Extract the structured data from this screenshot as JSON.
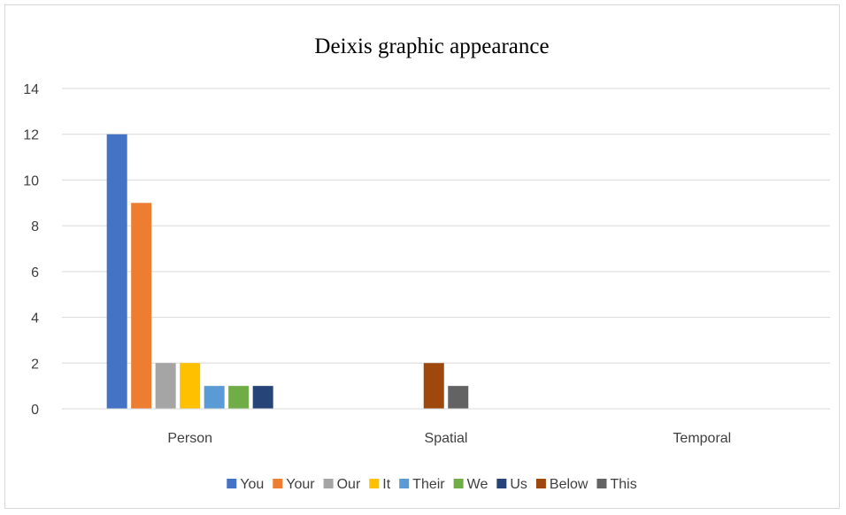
{
  "chart_data": {
    "type": "bar",
    "title": "Deixis graphic appearance",
    "xlabel": "",
    "ylabel": "",
    "ylim": [
      0,
      14
    ],
    "yticks": [
      0,
      2,
      4,
      6,
      8,
      10,
      12,
      14
    ],
    "grid": true,
    "legend_position": "bottom",
    "categories": [
      "Person",
      "Spatial",
      "Temporal"
    ],
    "series": [
      {
        "name": "You",
        "color": "#4472c4",
        "values": [
          12,
          null,
          null
        ]
      },
      {
        "name": "Your",
        "color": "#ed7d31",
        "values": [
          9,
          null,
          null
        ]
      },
      {
        "name": "Our",
        "color": "#a5a5a5",
        "values": [
          2,
          null,
          null
        ]
      },
      {
        "name": "It",
        "color": "#ffc000",
        "values": [
          2,
          null,
          null
        ]
      },
      {
        "name": "Their",
        "color": "#5b9bd5",
        "values": [
          1,
          null,
          null
        ]
      },
      {
        "name": "We",
        "color": "#70ad47",
        "values": [
          1,
          null,
          null
        ]
      },
      {
        "name": "Us",
        "color": "#264478",
        "values": [
          1,
          null,
          null
        ]
      },
      {
        "name": "Below",
        "color": "#9e480e",
        "values": [
          null,
          2,
          null
        ]
      },
      {
        "name": "This",
        "color": "#636363",
        "values": [
          null,
          1,
          null
        ]
      }
    ]
  }
}
